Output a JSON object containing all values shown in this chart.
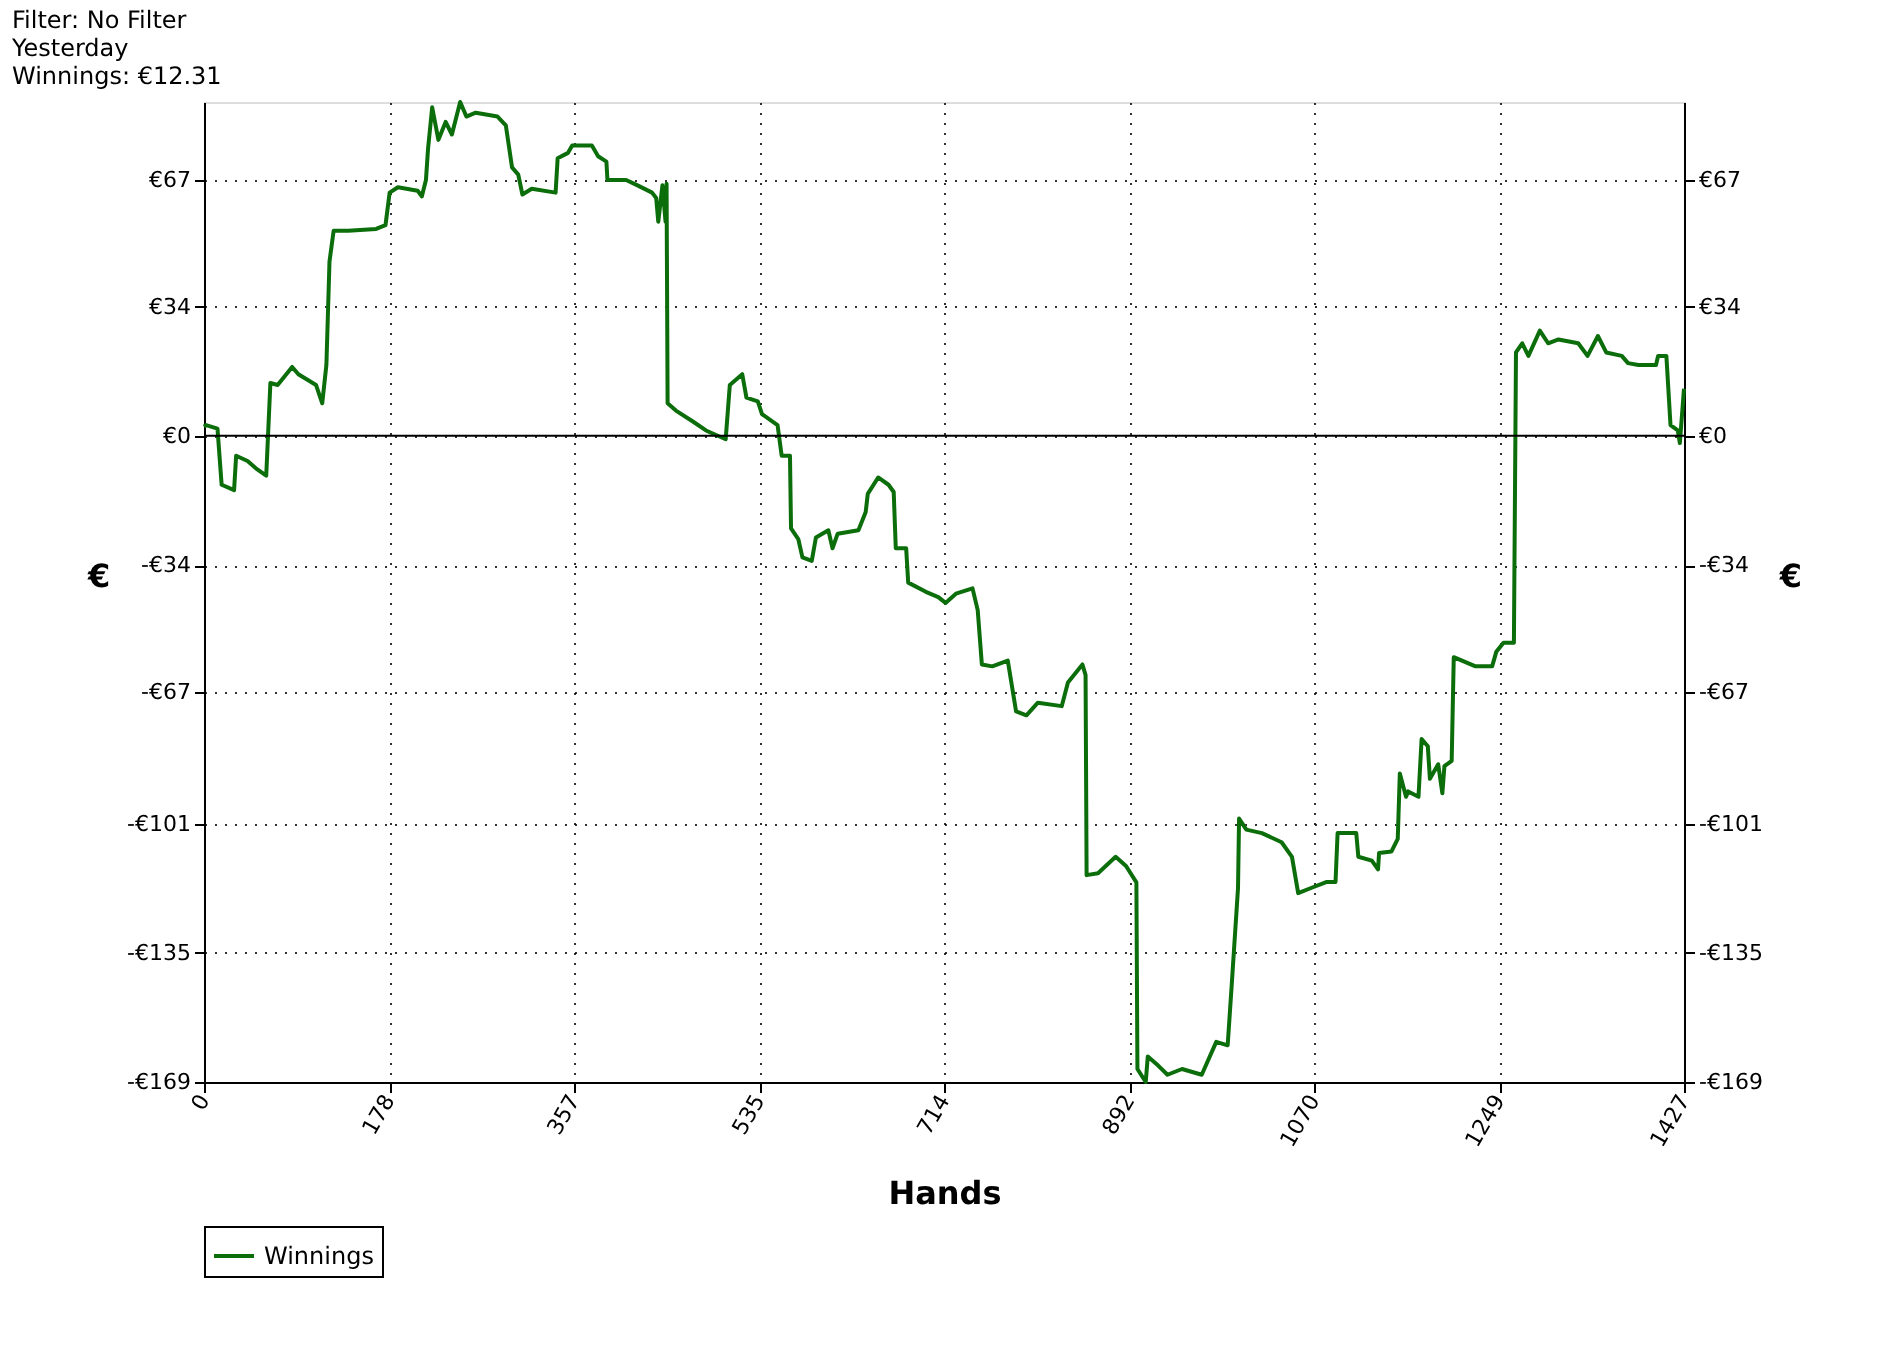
{
  "chart_data": {
    "type": "line",
    "xlabel": "Hands",
    "ylabel": "€",
    "y2label": "€",
    "annotations": [
      "Filter: No Filter",
      "Yesterday",
      "Winnings: €12.31"
    ],
    "xlim": [
      0,
      1427
    ],
    "xticks": [
      0,
      {
        "value": 178.375,
        "label": "178"
      },
      {
        "value": 356.75,
        "label": "357"
      },
      {
        "value": 535.125,
        "label": "535"
      },
      {
        "value": 713.5,
        "label": "714"
      },
      {
        "value": 891.875,
        "label": "892"
      },
      {
        "value": 1070.25,
        "label": "1070"
      },
      {
        "value": 1248.625,
        "label": "1249"
      },
      {
        "value": 1427,
        "label": "1427"
      }
    ],
    "ylim": [
      -169,
      87.3
    ],
    "yticks": [
      {
        "value": -169,
        "label": "-€169"
      },
      {
        "value": -135.2,
        "label": "-€135"
      },
      {
        "value": -101.4,
        "label": "-€101"
      },
      {
        "value": -67,
        "label": "-€67"
      },
      {
        "value": -33.8,
        "label": "-€34"
      },
      {
        "value": 0,
        "label": "€0"
      },
      {
        "value": 33.8,
        "label": "€34"
      },
      {
        "value": 67,
        "label": "€67"
      }
    ],
    "y2lim": [
      -169,
      87.3
    ],
    "y2ticks": [
      {
        "value": -169,
        "label": "-€169"
      },
      {
        "value": -135.2,
        "label": "-€135"
      },
      {
        "value": -101.4,
        "label": "-€101"
      },
      {
        "value": -67,
        "label": "-€67"
      },
      {
        "value": -33.8,
        "label": "-€34"
      },
      {
        "value": 0,
        "label": "€0"
      },
      {
        "value": 33.8,
        "label": "€34"
      },
      {
        "value": 67,
        "label": "€67"
      }
    ],
    "grid": true,
    "legend": "bottom left",
    "marker": "none",
    "line_style": "solid",
    "ref_lines": [
      {
        "axis": "y",
        "value": 0,
        "color": "#000000"
      }
    ],
    "series": [
      {
        "name": "Winnings",
        "color": "#0b6e0b",
        "x": [
          0,
          2,
          13,
          17,
          29,
          31,
          42,
          50,
          60,
          64,
          71,
          85,
          91,
          108,
          114,
          118,
          121,
          125,
          139,
          166,
          175,
          179,
          187,
          206,
          210,
          214,
          216,
          220,
          226,
          233,
          239,
          247,
          253,
          262,
          283,
          291,
          297,
          303,
          307,
          316,
          339,
          341,
          351,
          355,
          374,
          380,
          388,
          389,
          407,
          418,
          432,
          436,
          438,
          442,
          445,
          446,
          447,
          455,
          471,
          484,
          503,
          507,
          519,
          523,
          534,
          538,
          553,
          557,
          565,
          566,
          573,
          577,
          586,
          590,
          602,
          606,
          611,
          631,
          638,
          640,
          650,
          660,
          665,
          667,
          677,
          679,
          696,
          708,
          715,
          725,
          741,
          746,
          750,
          760,
          775,
          783,
          793,
          804,
          827,
          833,
          847,
          850,
          851,
          862,
          879,
          889,
          899,
          900,
          908,
          910,
          920,
          929,
          943,
          962,
          976,
          987,
          991,
          997,
          998,
          1005,
          1020,
          1039,
          1049,
          1055,
          1068,
          1082,
          1091,
          1093,
          1111,
          1113,
          1126,
          1132,
          1133,
          1145,
          1151,
          1153,
          1159,
          1161,
          1171,
          1174,
          1180,
          1182,
          1190,
          1194,
          1196,
          1203,
          1205,
          1226,
          1242,
          1246,
          1253,
          1263,
          1265,
          1271,
          1277,
          1288,
          1296,
          1306,
          1325,
          1334,
          1344,
          1352,
          1367,
          1373,
          1383,
          1400,
          1402,
          1410,
          1414,
          1421,
          1423,
          1427
        ],
        "values": [
          2.4,
          2.8,
          1.9,
          -12.8,
          -14.2,
          -5.2,
          -6.6,
          -8.5,
          -10.4,
          13.8,
          13.3,
          18.0,
          16.1,
          13.3,
          8.5,
          18.5,
          45.6,
          53.6,
          53.6,
          54.1,
          55.1,
          63.6,
          65.0,
          64.1,
          62.6,
          66.9,
          75.0,
          85.9,
          77.4,
          82.1,
          78.8,
          87.3,
          83.5,
          84.5,
          83.5,
          81.2,
          70.2,
          68.3,
          63.1,
          64.6,
          63.6,
          72.6,
          74.0,
          75.9,
          75.9,
          73.1,
          71.7,
          66.9,
          66.9,
          65.5,
          63.6,
          62.2,
          56.0,
          65.5,
          56.0,
          65.9,
          8.5,
          6.6,
          3.8,
          1.4,
          -0.9,
          13.3,
          16.1,
          10.0,
          9.0,
          5.7,
          2.8,
          -5.2,
          -5.2,
          -24.2,
          -27.0,
          -31.8,
          -32.7,
          -26.6,
          -24.7,
          -29.4,
          -25.6,
          -24.7,
          -19.9,
          -15.2,
          -10.9,
          -12.8,
          -14.7,
          -29.4,
          -29.4,
          -38.4,
          -40.8,
          -42.2,
          -43.7,
          -41.3,
          -39.9,
          -45.6,
          -59.8,
          -60.3,
          -58.8,
          -72.1,
          -73.1,
          -69.8,
          -70.7,
          -64.5,
          -59.8,
          -62.6,
          -114.9,
          -114.4,
          -110.1,
          -112.5,
          -116.8,
          -165.6,
          -169.0,
          -162.3,
          -164.7,
          -167.1,
          -165.6,
          -167.1,
          -158.5,
          -159.4,
          -143.3,
          -118.2,
          -100.1,
          -103.0,
          -103.9,
          -106.3,
          -110.1,
          -119.6,
          -118.2,
          -116.7,
          -116.7,
          -103.9,
          -103.9,
          -110.1,
          -111.1,
          -113.4,
          -109.1,
          -108.7,
          -105.4,
          -88.3,
          -94.4,
          -93.0,
          -94.4,
          -79.3,
          -81.2,
          -89.7,
          -85.9,
          -93.5,
          -86.4,
          -85.0,
          -57.9,
          -60.3,
          -60.3,
          -56.5,
          -54.1,
          -54.1,
          21.8,
          24.2,
          20.9,
          27.5,
          24.2,
          25.2,
          24.2,
          20.9,
          26.1,
          21.8,
          20.9,
          19.0,
          18.5,
          18.5,
          20.9,
          20.9,
          2.8,
          1.4,
          -1.9,
          12.3
        ]
      }
    ]
  }
}
